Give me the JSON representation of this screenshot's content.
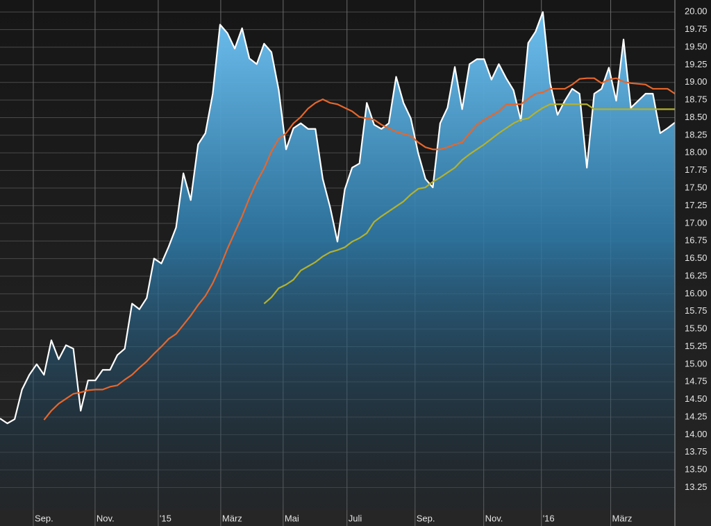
{
  "chart_data": {
    "type": "line",
    "x": [
      0,
      1,
      2,
      3,
      4,
      5,
      6,
      7,
      8,
      9,
      10,
      11,
      12,
      13,
      14,
      15,
      16,
      17,
      18,
      19,
      20,
      21,
      22,
      23,
      24,
      25,
      26,
      27,
      28,
      29,
      30,
      31,
      32,
      33,
      34,
      35,
      36,
      37,
      38,
      39,
      40,
      41,
      42,
      43,
      44,
      45,
      46,
      47,
      48,
      49,
      50,
      51,
      52,
      53,
      54,
      55,
      56,
      57,
      58,
      59,
      60,
      61,
      62,
      63,
      64,
      65,
      66,
      67,
      68,
      69,
      70,
      71,
      72,
      73,
      74,
      75,
      76,
      77,
      78,
      79,
      80,
      81,
      82,
      83,
      84,
      85,
      86,
      87,
      88,
      89,
      90,
      91,
      92
    ],
    "xlim": [
      0,
      92
    ],
    "xticks": [
      {
        "value": 4.54,
        "label": "Sep."
      },
      {
        "value": 12.96,
        "label": "Nov."
      },
      {
        "value": 21.57,
        "label": "'15"
      },
      {
        "value": 30.09,
        "label": "März"
      },
      {
        "value": 38.6,
        "label": "Mai"
      },
      {
        "value": 47.3,
        "label": "Juli"
      },
      {
        "value": 56.58,
        "label": "Sep."
      },
      {
        "value": 65.94,
        "label": "Nov."
      },
      {
        "value": 73.8,
        "label": "'16"
      },
      {
        "value": 83.25,
        "label": "März"
      }
    ],
    "ylim": [
      12.93,
      20.17
    ],
    "yticks": [
      {
        "value": 13.25,
        "label": "13.25"
      },
      {
        "value": 13.5,
        "label": "13.50"
      },
      {
        "value": 13.75,
        "label": "13.75"
      },
      {
        "value": 14,
        "label": "14.00"
      },
      {
        "value": 14.25,
        "label": "14.25"
      },
      {
        "value": 14.5,
        "label": "14.50"
      },
      {
        "value": 14.75,
        "label": "14.75"
      },
      {
        "value": 15,
        "label": "15.00"
      },
      {
        "value": 15.25,
        "label": "15.25"
      },
      {
        "value": 15.5,
        "label": "15.50"
      },
      {
        "value": 15.75,
        "label": "15.75"
      },
      {
        "value": 16,
        "label": "16.00"
      },
      {
        "value": 16.25,
        "label": "16.25"
      },
      {
        "value": 16.5,
        "label": "16.50"
      },
      {
        "value": 16.75,
        "label": "16.75"
      },
      {
        "value": 17,
        "label": "17.00"
      },
      {
        "value": 17.25,
        "label": "17.25"
      },
      {
        "value": 17.5,
        "label": "17.50"
      },
      {
        "value": 17.75,
        "label": "17.75"
      },
      {
        "value": 18,
        "label": "18.00"
      },
      {
        "value": 18.25,
        "label": "18.25"
      },
      {
        "value": 18.5,
        "label": "18.50"
      },
      {
        "value": 18.75,
        "label": "18.75"
      },
      {
        "value": 19,
        "label": "19.00"
      },
      {
        "value": 19.25,
        "label": "19.25"
      },
      {
        "value": 19.5,
        "label": "19.50"
      },
      {
        "value": 19.75,
        "label": "19.75"
      },
      {
        "value": 20,
        "label": "20.00"
      }
    ],
    "grid": true,
    "series": [
      {
        "color": "#ffffff",
        "area": true,
        "values": [
          14.23,
          14.16,
          14.22,
          14.64,
          14.85,
          15.0,
          14.85,
          15.34,
          15.07,
          15.27,
          15.22,
          14.34,
          14.77,
          14.77,
          14.92,
          14.92,
          15.13,
          15.22,
          15.86,
          15.78,
          15.94,
          16.5,
          16.43,
          16.67,
          16.94,
          17.71,
          17.33,
          18.12,
          18.28,
          18.84,
          19.82,
          19.7,
          19.48,
          19.77,
          19.34,
          19.26,
          19.55,
          19.43,
          18.89,
          18.05,
          18.35,
          18.42,
          18.34,
          18.34,
          17.63,
          17.23,
          16.74,
          17.48,
          17.79,
          17.85,
          18.71,
          18.4,
          18.34,
          18.42,
          19.08,
          18.71,
          18.49,
          18.0,
          17.63,
          17.51,
          18.42,
          18.64,
          19.22,
          18.62,
          19.26,
          19.33,
          19.33,
          19.04,
          19.26,
          19.06,
          18.89,
          18.46,
          19.56,
          19.72,
          20.0,
          18.99,
          18.54,
          18.74,
          18.91,
          18.84,
          17.79,
          18.84,
          18.91,
          19.21,
          18.74,
          19.61,
          18.64,
          18.74,
          18.84,
          18.84,
          18.28,
          18.35,
          18.43
        ]
      },
      {
        "color": "#e8662a",
        "values": [
          null,
          null,
          null,
          null,
          null,
          null,
          14.21,
          14.34,
          14.44,
          14.51,
          14.58,
          14.6,
          14.63,
          14.64,
          14.64,
          14.68,
          14.7,
          14.78,
          14.85,
          14.95,
          15.04,
          15.15,
          15.25,
          15.36,
          15.43,
          15.56,
          15.69,
          15.84,
          15.97,
          16.15,
          16.38,
          16.64,
          16.87,
          17.1,
          17.36,
          17.59,
          17.78,
          18.02,
          18.2,
          18.28,
          18.42,
          18.51,
          18.63,
          18.71,
          18.76,
          18.71,
          18.69,
          18.64,
          18.59,
          18.51,
          18.49,
          18.47,
          18.4,
          18.35,
          18.3,
          18.27,
          18.24,
          18.15,
          18.08,
          18.05,
          18.05,
          18.08,
          18.12,
          18.15,
          18.28,
          18.4,
          18.47,
          18.53,
          18.59,
          18.69,
          18.69,
          18.69,
          18.77,
          18.84,
          18.86,
          18.91,
          18.91,
          18.91,
          18.97,
          19.05,
          19.06,
          19.06,
          18.99,
          19.04,
          19.06,
          19.01,
          18.99,
          18.98,
          18.97,
          18.91,
          18.91,
          18.91,
          18.84
        ]
      },
      {
        "color": "#b5b22a",
        "values": [
          null,
          null,
          null,
          null,
          null,
          null,
          null,
          null,
          null,
          null,
          null,
          null,
          null,
          null,
          null,
          null,
          null,
          null,
          null,
          null,
          null,
          null,
          null,
          null,
          null,
          null,
          null,
          null,
          null,
          null,
          null,
          null,
          null,
          null,
          null,
          null,
          15.86,
          15.95,
          16.08,
          16.13,
          16.2,
          16.33,
          16.39,
          16.45,
          16.53,
          16.59,
          16.62,
          16.66,
          16.74,
          16.79,
          16.86,
          17.02,
          17.1,
          17.17,
          17.24,
          17.31,
          17.41,
          17.49,
          17.51,
          17.59,
          17.65,
          17.72,
          17.79,
          17.9,
          17.98,
          18.05,
          18.12,
          18.2,
          18.28,
          18.35,
          18.42,
          18.47,
          18.49,
          18.57,
          18.64,
          18.69,
          18.69,
          18.69,
          18.69,
          18.69,
          18.69,
          18.62,
          18.62,
          18.62,
          18.62,
          18.62,
          18.62,
          18.62,
          18.62,
          18.62,
          18.62,
          18.62,
          18.62
        ]
      }
    ]
  }
}
